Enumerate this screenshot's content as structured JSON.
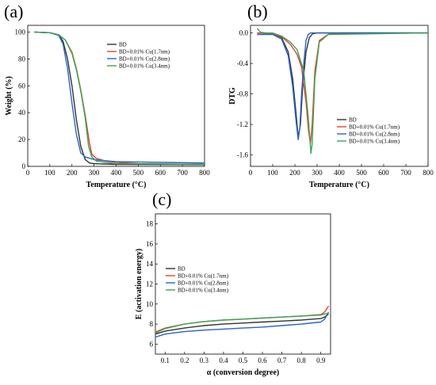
{
  "chart_data": [
    {
      "panel": "(a)",
      "type": "line",
      "xlabel": "Temperature (°C)",
      "ylabel": "Weight (%)",
      "xlim": [
        0,
        800
      ],
      "ylim": [
        0,
        105
      ],
      "xticks": [
        0,
        100,
        200,
        300,
        400,
        500,
        600,
        700,
        800
      ],
      "yticks": [
        0,
        20,
        40,
        60,
        80,
        100
      ],
      "legend_position": "upper-right",
      "series": [
        {
          "name": "BD",
          "color": "#333333",
          "x": [
            30,
            100,
            140,
            160,
            180,
            200,
            220,
            240,
            260,
            280,
            300,
            400,
            800
          ],
          "y": [
            100,
            99.5,
            98,
            93,
            80,
            60,
            35,
            15,
            5,
            2.5,
            2,
            1.5,
            1.2
          ]
        },
        {
          "name": "BD+0.01% Cu(1.7nm)",
          "color": "#e8412c",
          "x": [
            30,
            100,
            140,
            170,
            200,
            220,
            240,
            260,
            280,
            290,
            310,
            350,
            400,
            500,
            800
          ],
          "y": [
            100,
            99.5,
            98,
            94,
            85,
            73,
            57,
            38,
            17,
            9,
            6,
            4,
            3,
            2,
            1.5
          ]
        },
        {
          "name": "BD+0.01% Cu(2.8nm)",
          "color": "#2a62c9",
          "x": [
            30,
            100,
            140,
            160,
            180,
            200,
            220,
            240,
            260,
            280,
            300,
            400,
            800
          ],
          "y": [
            100,
            99.5,
            97.5,
            91,
            73,
            47,
            24,
            10,
            7,
            6,
            5,
            3.5,
            2.5
          ]
        },
        {
          "name": "BD+0.01% Cu(3.4nm)",
          "color": "#3aa655",
          "x": [
            30,
            100,
            140,
            170,
            200,
            220,
            240,
            260,
            275,
            290,
            310,
            350,
            400,
            800
          ],
          "y": [
            100,
            99.5,
            98,
            94,
            84,
            72,
            56,
            36,
            15,
            7,
            4,
            3,
            2,
            1.5
          ]
        }
      ]
    },
    {
      "panel": "(b)",
      "type": "line",
      "xlabel": "Temperature (°C)",
      "ylabel": "DTG",
      "xlim": [
        0,
        800
      ],
      "ylim": [
        -1.75,
        0.1
      ],
      "xticks": [
        0,
        100,
        200,
        300,
        400,
        500,
        600,
        700,
        800
      ],
      "yticks": [
        0.0,
        -0.4,
        -0.8,
        -1.2,
        -1.6
      ],
      "legend_position": "lower-right",
      "series": [
        {
          "name": "BD",
          "color": "#333333",
          "x": [
            30,
            100,
            140,
            170,
            190,
            205,
            215,
            225,
            235,
            250,
            265,
            280,
            300,
            350,
            800
          ],
          "y": [
            0,
            -0.01,
            -0.06,
            -0.25,
            -0.6,
            -1.05,
            -1.37,
            -1.2,
            -0.7,
            -0.25,
            -0.06,
            -0.01,
            0,
            0,
            0
          ]
        },
        {
          "name": "BD+0.01% Cu(1.7nm)",
          "color": "#e8412c",
          "x": [
            30,
            100,
            140,
            180,
            210,
            230,
            250,
            262,
            270,
            278,
            290,
            310,
            350,
            400,
            800
          ],
          "y": [
            0,
            -0.01,
            -0.05,
            -0.15,
            -0.28,
            -0.45,
            -0.9,
            -1.3,
            -1.45,
            -1.2,
            -0.5,
            -0.1,
            -0.02,
            0,
            0
          ]
        },
        {
          "name": "BD+0.01% Cu(2.8nm)",
          "color": "#2a62c9",
          "x": [
            30,
            100,
            140,
            170,
            190,
            205,
            215,
            222,
            230,
            240,
            250,
            260,
            270,
            350,
            800
          ],
          "y": [
            -0.02,
            -0.02,
            -0.08,
            -0.3,
            -0.7,
            -1.15,
            -1.4,
            -1.25,
            -0.8,
            -0.4,
            -0.1,
            -0.02,
            0,
            0,
            0
          ]
        },
        {
          "name": "BD+0.01% Cu(3.4nm)",
          "color": "#3aa655",
          "x": [
            30,
            45,
            70,
            100,
            140,
            180,
            210,
            240,
            260,
            272,
            278,
            290,
            310,
            350,
            800
          ],
          "y": [
            0.06,
            0.01,
            0,
            0,
            -0.04,
            -0.12,
            -0.22,
            -0.5,
            -1.1,
            -1.58,
            -1.45,
            -0.6,
            -0.12,
            -0.02,
            0
          ]
        }
      ]
    },
    {
      "panel": "(c)",
      "type": "line",
      "xlabel": "α (conversion degree)",
      "ylabel": "E (activation energy)",
      "xlim": [
        0.05,
        0.95
      ],
      "ylim": [
        5,
        19
      ],
      "xticks": [
        0.1,
        0.2,
        0.3,
        0.4,
        0.5,
        0.6,
        0.7,
        0.8,
        0.9
      ],
      "yticks": [
        6,
        8,
        10,
        12,
        14,
        16,
        18
      ],
      "legend_position": "left",
      "series": [
        {
          "name": "BD",
          "color": "#333333",
          "x": [
            0.05,
            0.1,
            0.2,
            0.3,
            0.4,
            0.5,
            0.6,
            0.7,
            0.8,
            0.9,
            0.92,
            0.94
          ],
          "y": [
            7.0,
            7.3,
            7.6,
            7.85,
            8.0,
            8.1,
            8.2,
            8.3,
            8.4,
            8.55,
            8.7,
            9.0
          ]
        },
        {
          "name": "BD+0.01% Cu(1.7nm)",
          "color": "#e8412c",
          "x": [
            0.05,
            0.1,
            0.2,
            0.3,
            0.4,
            0.5,
            0.6,
            0.7,
            0.8,
            0.9,
            0.92,
            0.94
          ],
          "y": [
            7.2,
            7.6,
            8.0,
            8.25,
            8.4,
            8.5,
            8.6,
            8.7,
            8.8,
            8.95,
            9.2,
            9.8
          ]
        },
        {
          "name": "BD+0.01% Cu(2.8nm)",
          "color": "#2a62c9",
          "x": [
            0.05,
            0.1,
            0.2,
            0.3,
            0.4,
            0.5,
            0.6,
            0.7,
            0.8,
            0.9,
            0.92,
            0.94
          ],
          "y": [
            6.7,
            7.0,
            7.25,
            7.4,
            7.5,
            7.6,
            7.7,
            7.85,
            8.0,
            8.2,
            8.5,
            9.2
          ]
        },
        {
          "name": "BD+0.01% Cu(3.4nm)",
          "color": "#3aa655",
          "x": [
            0.05,
            0.1,
            0.2,
            0.3,
            0.4,
            0.5,
            0.6,
            0.7,
            0.8,
            0.9,
            0.92,
            0.94
          ],
          "y": [
            7.1,
            7.55,
            8.0,
            8.25,
            8.4,
            8.5,
            8.6,
            8.7,
            8.8,
            8.9,
            9.0,
            9.1
          ]
        }
      ]
    }
  ]
}
